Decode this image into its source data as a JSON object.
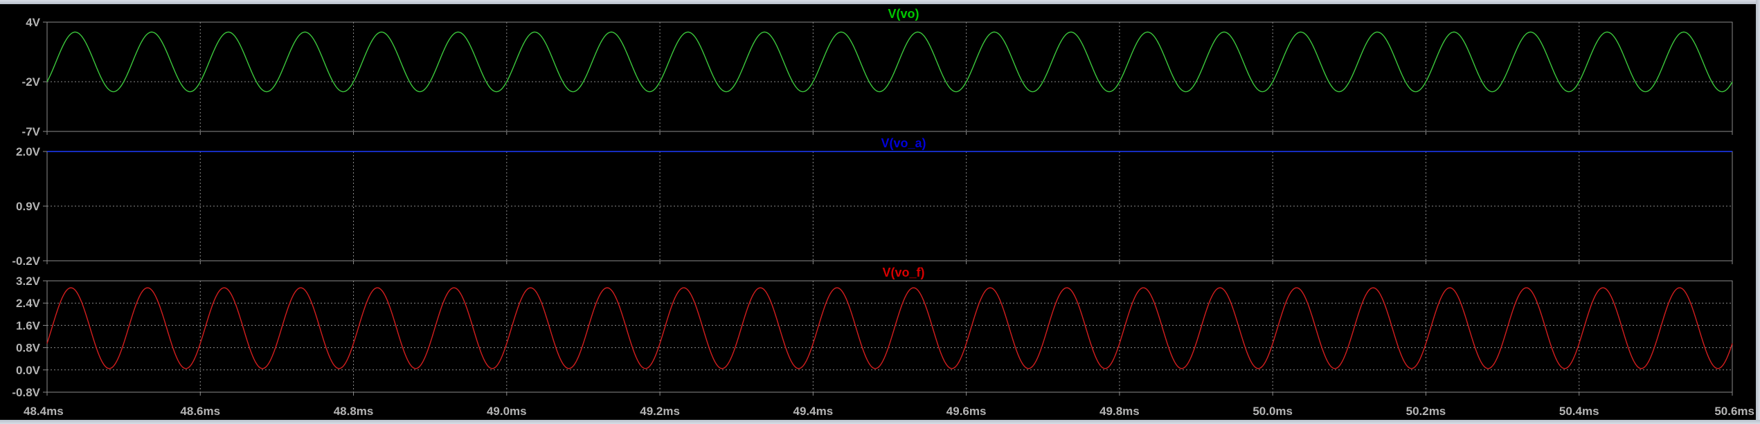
{
  "window": {
    "background": "#000000",
    "axis_color": "#8c8c8c",
    "grid_color": "#8c8c8c",
    "label_color": "#b4b4b4"
  },
  "chart_data": [
    {
      "type": "line",
      "title": "V(vo)",
      "title_color": "#00c800",
      "series": [
        {
          "name": "V(vo)",
          "color": "#3cc83c",
          "waveform": "sine",
          "frequency_hz": 10000,
          "offset_v": 0,
          "amplitude_v": 3.0,
          "x_start_ms": 48.4,
          "value_at_start_v": -2.0
        }
      ],
      "xlim": [
        48.4,
        50.6
      ],
      "ylim": [
        -7,
        4
      ],
      "y_ticks": [
        {
          "value": 4,
          "label": "4V"
        },
        {
          "value": -2,
          "label": "-2V"
        },
        {
          "value": -7,
          "label": "-7V"
        }
      ],
      "grid": true
    },
    {
      "type": "line",
      "title": "V(vo_a)",
      "title_color": "#0000d8",
      "series": [
        {
          "name": "V(vo_a)",
          "color": "#1e3cff",
          "waveform": "constant",
          "value_v": 2.0
        }
      ],
      "xlim": [
        48.4,
        50.6
      ],
      "ylim": [
        -0.2,
        2.0
      ],
      "y_ticks": [
        {
          "value": 2.0,
          "label": "2.0V"
        },
        {
          "value": 0.9,
          "label": "0.9V"
        },
        {
          "value": -0.2,
          "label": "-0.2V"
        }
      ],
      "grid": true
    },
    {
      "type": "line",
      "title": "V(vo_f)",
      "title_color": "#d80000",
      "series": [
        {
          "name": "V(vo_f)",
          "color": "#d21e1e",
          "waveform": "sine",
          "frequency_hz": 10000,
          "offset_v": 1.5,
          "amplitude_v": 1.45,
          "x_start_ms": 48.4,
          "value_at_start_v": 0.95
        }
      ],
      "xlim": [
        48.4,
        50.6
      ],
      "ylim": [
        -0.8,
        3.2
      ],
      "y_ticks": [
        {
          "value": 3.2,
          "label": "3.2V"
        },
        {
          "value": 2.4,
          "label": "2.4V"
        },
        {
          "value": 1.6,
          "label": "1.6V"
        },
        {
          "value": 0.8,
          "label": "0.8V"
        },
        {
          "value": 0.0,
          "label": "0.0V"
        },
        {
          "value": -0.8,
          "label": "-0.8V"
        }
      ],
      "grid": true
    }
  ],
  "x_axis": {
    "xlim": [
      48.4,
      50.6
    ],
    "ticks": [
      {
        "value": 48.4,
        "label": "48.4ms"
      },
      {
        "value": 48.6,
        "label": "48.6ms"
      },
      {
        "value": 48.8,
        "label": "48.8ms"
      },
      {
        "value": 49.0,
        "label": "49.0ms"
      },
      {
        "value": 49.2,
        "label": "49.2ms"
      },
      {
        "value": 49.4,
        "label": "49.4ms"
      },
      {
        "value": 49.6,
        "label": "49.6ms"
      },
      {
        "value": 49.8,
        "label": "49.8ms"
      },
      {
        "value": 50.0,
        "label": "50.0ms"
      },
      {
        "value": 50.2,
        "label": "50.2ms"
      },
      {
        "value": 50.4,
        "label": "50.4ms"
      },
      {
        "value": 50.6,
        "label": "50.6ms"
      }
    ]
  }
}
